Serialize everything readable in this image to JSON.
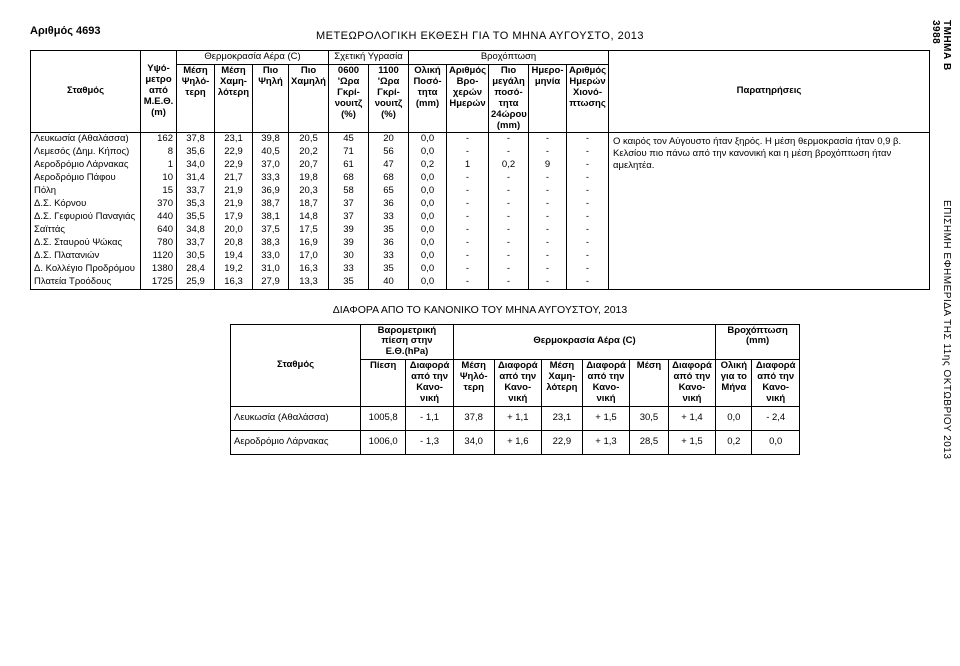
{
  "docNumber": "Αριθμός 4693",
  "sideRight": {
    "top": "ΤΜΗΜΑ Β\n3988",
    "bottom": "ΕΠΙΣΗΜΗ ΕΦΗΜΕΡΙΔΑ ΤΗΣ 11ης ΟΚΤΩΒΡΙΟΥ 2013"
  },
  "title": "ΜΕΤΕΩΡΟΛΟΓΙΚΗ  ΕΚΘΕΣΗ  ΓΙΑ  ΤΟ ΜΗΝΑ  ΑΥΓΟΥΣΤΟ,  2013",
  "groupHeaders": {
    "temp": "Θερμοκρασία Αέρα (C)",
    "humidity": "Σχετική Υγρασία",
    "precip": "Βροχόπτωση"
  },
  "colHeads": {
    "station": "Σταθμός",
    "alt": "Υψό-\nμετρο\nαπό\nΜ.Ε.Θ.\n(m)",
    "c1": "Μέση\nΨηλό-\nτερη",
    "c2": "Μέση\nΧαμη-\nλότερη",
    "c3": "Πιο\nΨηλή",
    "c4": "Πιο\nΧαμηλή",
    "c5": "0600\n'Ωρα\nΓκρί-\nνουιτζ\n(%)",
    "c6": "1100\n'Ωρα\nΓκρί-\nνουιτζ\n(%)",
    "c7": "Ολική\nΠοσό-\nτητα\n(mm)",
    "c8": "Αριθμός\nΒρο-\nχερών\nΗμερών",
    "c9": "Πιο\nμεγάλη\nποσό-\nτητα\n24ώρου\n(mm)",
    "c10": "Ημερο-\nμηνία",
    "c11": "Αριθμός\nΗμερών\nΧιονό-\nπτωσης",
    "notes": "Παρατηρήσεις"
  },
  "rows": [
    {
      "s": "Λευκωσία (Αθαλάσσα)",
      "alt": "162",
      "v": [
        "37,8",
        "23,1",
        "39,8",
        "20,5",
        "45",
        "20",
        "0,0",
        "-",
        "-",
        "-",
        "-"
      ]
    },
    {
      "s": "Λεμεσός (Δημ. Κήπος)",
      "alt": "8",
      "v": [
        "35,6",
        "22,9",
        "40,5",
        "20,2",
        "71",
        "56",
        "0,0",
        "-",
        "-",
        "-",
        "-"
      ]
    },
    {
      "s": "Αεροδρόμιο Λάρνακας",
      "alt": "1",
      "v": [
        "34,0",
        "22,9",
        "37,0",
        "20,7",
        "61",
        "47",
        "0,2",
        "1",
        "0,2",
        "9",
        "-"
      ]
    },
    {
      "s": "Αεροδρόμιο Πάφου",
      "alt": "10",
      "v": [
        "31,4",
        "21,7",
        "33,3",
        "19,8",
        "68",
        "68",
        "0,0",
        "-",
        "-",
        "-",
        "-"
      ]
    },
    {
      "s": "Πόλη",
      "alt": "15",
      "v": [
        "33,7",
        "21,9",
        "36,9",
        "20,3",
        "58",
        "65",
        "0,0",
        "-",
        "-",
        "-",
        "-"
      ]
    },
    {
      "s": "Δ.Σ. Κόρνου",
      "alt": "370",
      "v": [
        "35,3",
        "21,9",
        "38,7",
        "18,7",
        "37",
        "36",
        "0,0",
        "-",
        "-",
        "-",
        "-"
      ]
    },
    {
      "s": "Δ.Σ. Γεφυριού Παναγιάς",
      "alt": "440",
      "v": [
        "35,5",
        "17,9",
        "38,1",
        "14,8",
        "37",
        "33",
        "0,0",
        "-",
        "-",
        "-",
        "-"
      ]
    },
    {
      "s": "Σαϊττάς",
      "alt": "640",
      "v": [
        "34,8",
        "20,0",
        "37,5",
        "17,5",
        "39",
        "35",
        "0,0",
        "-",
        "-",
        "-",
        "-"
      ]
    },
    {
      "s": "Δ.Σ. Σταυρού Ψώκας",
      "alt": "780",
      "v": [
        "33,7",
        "20,8",
        "38,3",
        "16,9",
        "39",
        "36",
        "0,0",
        "-",
        "-",
        "-",
        "-"
      ]
    },
    {
      "s": "Δ.Σ. Πλατανιών",
      "alt": "1120",
      "v": [
        "30,5",
        "19,4",
        "33,0",
        "17,0",
        "30",
        "33",
        "0,0",
        "-",
        "-",
        "-",
        "-"
      ]
    },
    {
      "s": "Δ. Κολλέγιο Προδρόμου",
      "alt": "1380",
      "v": [
        "28,4",
        "19,2",
        "31,0",
        "16,3",
        "33",
        "35",
        "0,0",
        "-",
        "-",
        "-",
        "-"
      ]
    },
    {
      "s": "Πλατεία Τροόδους",
      "alt": "1725",
      "v": [
        "25,9",
        "16,3",
        "27,9",
        "13,3",
        "35",
        "40",
        "0,0",
        "-",
        "-",
        "-",
        "-"
      ]
    }
  ],
  "notesText": "Ο καιρός τον Αύγουστο ήταν ξηρός. Η μέση θερμοκρασία ήταν 0,9 β. Κελσίου πιο πάνω από την κανονική και η μέση βροχόπτωση ήταν αμελητέα.",
  "subtitle": "ΔΙΑΦΟΡΑ ΑΠΟ ΤΟ ΚΑΝΟΝΙΚΟ ΤΟΥ ΜΗΝΑ ΑΥΓΟΥΣΤΟΥ, 2013",
  "t2": {
    "headers": {
      "station": "Σταθμός",
      "baro": "Βαρομετρική\nπίεση στην\nΕ.Θ.(hPa)",
      "temp": "Θερμοκρασία Αέρα (C)",
      "precip": "Βροχόπτωση\n(mm)",
      "piesi": "Πίεση",
      "diaf": "Διαφορά\nαπό την\nΚανο-\nνική",
      "mesiY": "Μέση\nΨηλό-\nτερη",
      "mesiX": "Μέση\nΧαμη-\nλότερη",
      "mesi": "Μέση",
      "oliki": "Ολική\nγια το\nΜήνα"
    },
    "rows": [
      {
        "s": "Λευκωσία (Αθαλάσσα)",
        "v": [
          "1005,8",
          "- 1,1",
          "37,8",
          "+ 1,1",
          "23,1",
          "+ 1,5",
          "30,5",
          "+ 1,4",
          "0,0",
          "- 2,4"
        ]
      },
      {
        "s": "Αεροδρόμιο Λάρνακας",
        "v": [
          "1006,0",
          "- 1,3",
          "34,0",
          "+ 1,6",
          "22,9",
          "+ 1,3",
          "28,5",
          "+ 1,5",
          "0,2",
          "0,0"
        ]
      }
    ]
  }
}
